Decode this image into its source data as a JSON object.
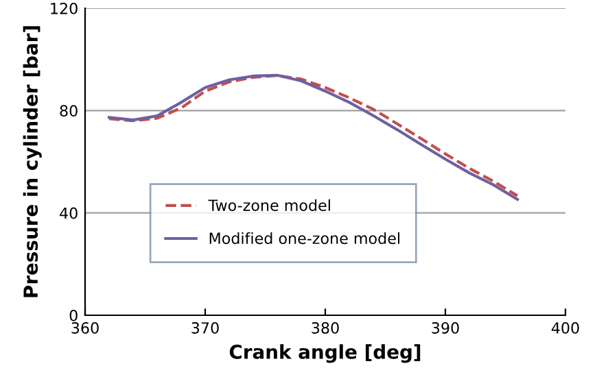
{
  "chart_data": {
    "type": "line",
    "xlabel": "Crank angle [deg]",
    "ylabel": "Pressure in cylinder [bar]",
    "xlim": [
      360,
      400
    ],
    "xticks": [
      360,
      370,
      380,
      390,
      400
    ],
    "ylim": [
      0,
      120
    ],
    "yticks": [
      0,
      40,
      80,
      120
    ],
    "grid": "y",
    "legend": "left",
    "marker": "none",
    "x": [
      362,
      364,
      366,
      368,
      370,
      372,
      374,
      376,
      378,
      380,
      382,
      384,
      386,
      388,
      390,
      392,
      394,
      396
    ],
    "series": [
      {
        "name": "Two-zone model",
        "color": "#c0504d",
        "line_style": "dashed",
        "values": [
          76.8,
          76.0,
          77.0,
          81.0,
          87.6,
          91.2,
          93.0,
          93.7,
          92.3,
          89.0,
          85.0,
          80.5,
          74.8,
          69.0,
          63.1,
          57.4,
          52.4,
          46.7
        ]
      },
      {
        "name": "Modified one-zone model",
        "color": "#7060a0",
        "line_style": "solid",
        "values": [
          77.3,
          76.3,
          77.9,
          83.2,
          89.0,
          92.0,
          93.5,
          93.8,
          91.6,
          87.6,
          83.2,
          78.0,
          72.5,
          66.7,
          61.0,
          55.6,
          51.0,
          45.3
        ]
      }
    ]
  }
}
